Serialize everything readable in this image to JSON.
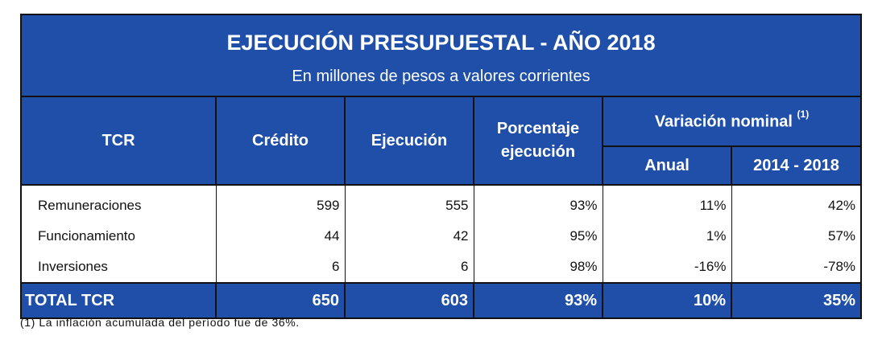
{
  "title": "EJECUCIÓN PRESUPUESTAL - AÑO 2018",
  "subtitle": "En millones de pesos a valores corrientes",
  "headers": {
    "tcr": "TCR",
    "credito": "Crédito",
    "ejecucion": "Ejecución",
    "porcentaje_line1": "Porcentaje",
    "porcentaje_line2": "ejecución",
    "variacion": "Variación nominal",
    "variacion_note": "(1)",
    "anual": "Anual",
    "periodo": "2014 - 2018"
  },
  "rows": [
    {
      "label": "Remuneraciones",
      "credito": "599",
      "ejecucion": "555",
      "porcentaje": "93%",
      "anual": "11%",
      "periodo": "42%"
    },
    {
      "label": "Funcionamiento",
      "credito": "44",
      "ejecucion": "42",
      "porcentaje": "95%",
      "anual": "1%",
      "periodo": "57%"
    },
    {
      "label": "Inversiones",
      "credito": "6",
      "ejecucion": "6",
      "porcentaje": "98%",
      "anual": "-16%",
      "periodo": "-78%"
    }
  ],
  "total": {
    "label": "TOTAL TCR",
    "credito": "650",
    "ejecucion": "603",
    "porcentaje": "93%",
    "anual": "10%",
    "periodo": "35%"
  },
  "footnote": "(1) La inflación acumulada del período fue de 36%.",
  "colors": {
    "header_bg": "#1f4fa8",
    "header_text": "#ffffff"
  }
}
